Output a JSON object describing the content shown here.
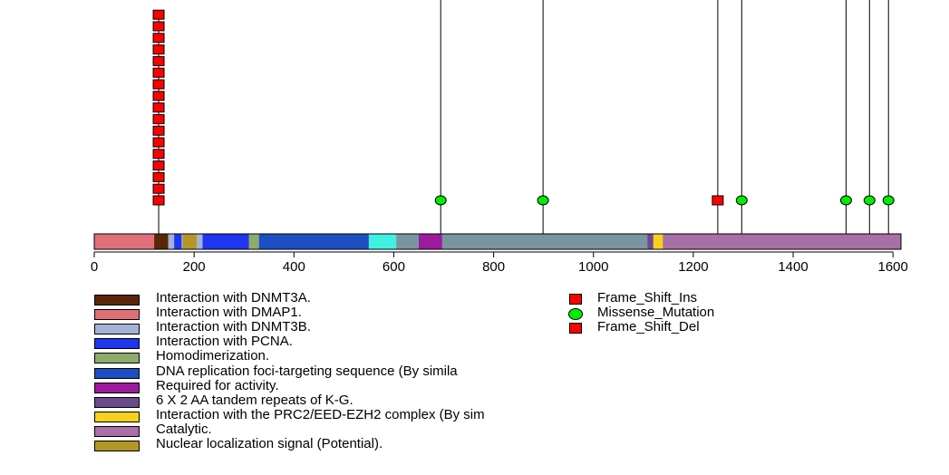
{
  "chart_data": {
    "type": "lollipop",
    "protein_length": 1616,
    "axis": {
      "xlim": [
        0,
        1616
      ],
      "ticks": [
        0,
        200,
        400,
        600,
        800,
        1000,
        1200,
        1400,
        1600
      ]
    },
    "domains": [
      {
        "name": "Interaction with DMAP1.",
        "start": 1,
        "end": 120,
        "color": "#e07078"
      },
      {
        "name": "Interaction with DNMT3A.",
        "start": 120,
        "end": 148,
        "color": "#5a2508"
      },
      {
        "name": "Interaction with DNMT3B.",
        "start": 148,
        "end": 160,
        "color": "#a3b2d6"
      },
      {
        "name": "Interaction with PCNA.",
        "start": 160,
        "end": 175,
        "color": "#1e36f0"
      },
      {
        "name": "Interaction with DNMT3B.",
        "start": 175,
        "end": 177,
        "color": "#a3b2d6"
      },
      {
        "name": "Nuclear localization signal (Potential).",
        "start": 177,
        "end": 205,
        "color": "#b39624"
      },
      {
        "name": "Interaction with DNMT3B.",
        "start": 205,
        "end": 217,
        "color": "#a3b2d6"
      },
      {
        "name": "Interaction with PCNA.",
        "start": 217,
        "end": 310,
        "color": "#1e36f0"
      },
      {
        "name": "Homodimerization.",
        "start": 310,
        "end": 330,
        "color": "#8faa6a"
      },
      {
        "name": "DNA replication foci-targeting sequence (By simila",
        "start": 330,
        "end": 550,
        "color": "#1d4fc3"
      },
      {
        "name": "",
        "start": 550,
        "end": 605,
        "color": "#40f0e0"
      },
      {
        "name": "",
        "start": 605,
        "end": 650,
        "color": "#7a95a0"
      },
      {
        "name": "Required for activity.",
        "start": 650,
        "end": 697,
        "color": "#9b1a9e"
      },
      {
        "name": "",
        "start": 697,
        "end": 1108,
        "color": "#7a95a0"
      },
      {
        "name": "6 X 2 AA tandem repeats of K-G.",
        "start": 1108,
        "end": 1120,
        "color": "#6b4c8a"
      },
      {
        "name": "Interaction with the PRC2/EED-EZH2 complex (By sim",
        "start": 1120,
        "end": 1139,
        "color": "#f5d21e"
      },
      {
        "name": "Catalytic.",
        "start": 1139,
        "end": 1616,
        "color": "#a870a6"
      }
    ],
    "mutations": [
      {
        "position": 129,
        "type": "Frame_Shift_Ins",
        "count": 17
      },
      {
        "position": 694,
        "type": "Missense_Mutation",
        "count": 1
      },
      {
        "position": 899,
        "type": "Missense_Mutation",
        "count": 1
      },
      {
        "position": 1249,
        "type": "Frame_Shift_Del",
        "count": 1
      },
      {
        "position": 1297,
        "type": "Missense_Mutation",
        "count": 1
      },
      {
        "position": 1506,
        "type": "Missense_Mutation",
        "count": 1
      },
      {
        "position": 1553,
        "type": "Missense_Mutation",
        "count": 1
      },
      {
        "position": 1591,
        "type": "Missense_Mutation",
        "count": 1
      }
    ]
  },
  "legend": {
    "domains": [
      {
        "label": "Interaction with DNMT3A.",
        "color": "#5a2508"
      },
      {
        "label": "Interaction with DMAP1.",
        "color": "#e07078"
      },
      {
        "label": "Interaction with DNMT3B.",
        "color": "#a3b2d6"
      },
      {
        "label": "Interaction with PCNA.",
        "color": "#1e36f0"
      },
      {
        "label": "Homodimerization.",
        "color": "#8faa6a"
      },
      {
        "label": "DNA replication foci-targeting sequence (By simila",
        "color": "#1d4fc3"
      },
      {
        "label": "Required for activity.",
        "color": "#9b1a9e"
      },
      {
        "label": "6 X 2 AA tandem repeats of K-G.",
        "color": "#6b4c8a"
      },
      {
        "label": "Interaction with the PRC2/EED-EZH2 complex (By sim",
        "color": "#f5d21e"
      },
      {
        "label": "Catalytic.",
        "color": "#a870a6"
      },
      {
        "label": "Nuclear localization signal (Potential).",
        "color": "#b39624"
      }
    ],
    "mutations": [
      {
        "label": "Frame_Shift_Ins",
        "shape": "square",
        "color": "#ff0000"
      },
      {
        "label": "Missense_Mutation",
        "shape": "circle",
        "color": "#00ee00"
      },
      {
        "label": "Frame_Shift_Del",
        "shape": "square",
        "color": "#ff0000"
      }
    ]
  }
}
